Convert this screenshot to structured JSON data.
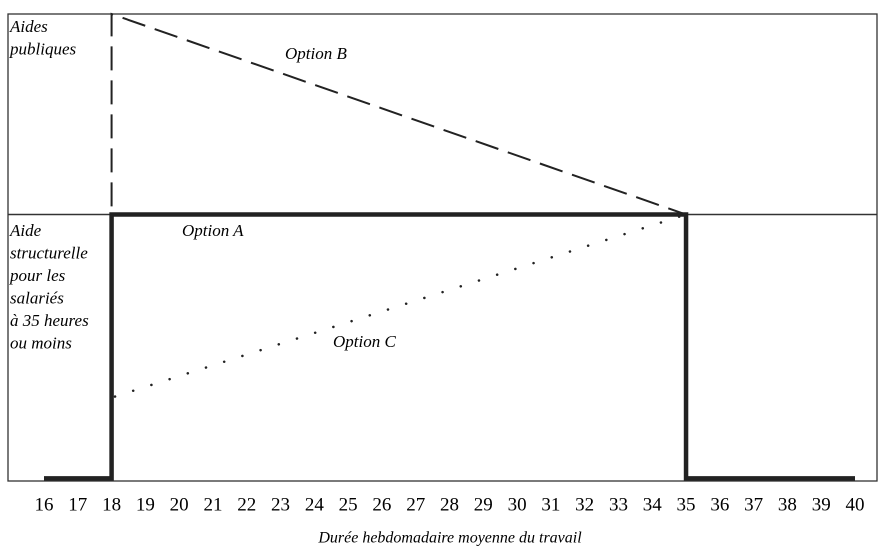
{
  "chart_data": {
    "type": "line",
    "xlabel": "Durée hebdomadaire moyenne du travail",
    "xlim": [
      16,
      40
    ],
    "xticks": [
      16,
      17,
      18,
      19,
      20,
      21,
      22,
      23,
      24,
      25,
      26,
      27,
      28,
      29,
      30,
      31,
      32,
      33,
      34,
      35,
      36,
      37,
      38,
      39,
      40
    ],
    "ylim": [
      -0.01,
      1.76
    ],
    "reference_line": 1,
    "region_labels": [
      [
        "Aides",
        "publiques"
      ],
      [
        "Aide",
        "structurelle",
        "pour les",
        "salariés",
        "à 35 heures",
        "ou moins"
      ]
    ],
    "series": [
      {
        "name": "Option A",
        "color": "#222222",
        "style": "solid",
        "x": [
          16,
          18,
          18,
          35,
          35,
          40
        ],
        "values": [
          0,
          0,
          1,
          1,
          0,
          0
        ]
      },
      {
        "name": "Option B",
        "color": "#222222",
        "style": "dashed",
        "x": [
          18,
          18,
          35
        ],
        "values": [
          0,
          1.76,
          1
        ]
      },
      {
        "name": "Option C",
        "color": "#222222",
        "style": "dotted",
        "x": [
          18.1,
          35
        ],
        "values": [
          0.31,
          1
        ]
      }
    ]
  }
}
